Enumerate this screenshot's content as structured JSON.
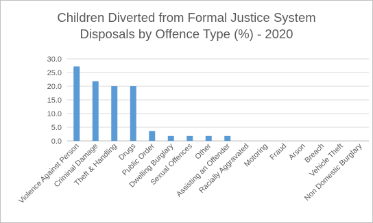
{
  "chart_data": {
    "type": "bar",
    "title_line1": "Children Diverted from Formal Justice System",
    "title_line2": "Disposals by Offence Type (%) - 2020",
    "categories": [
      "Violence Against Person",
      "Criminal Damage",
      "Theft & Handling",
      "Drugs",
      "Public Order",
      "Dwelling Burglary",
      "Sexual Offences",
      "Other",
      "Assisting an Offender",
      "Racially Aggravated",
      "Motoring",
      "Fraud",
      "Arson",
      "Breach",
      "Vehicle Theft",
      "Non Domestic Burglary"
    ],
    "values": [
      27.2,
      21.8,
      20.0,
      20.0,
      3.6,
      1.8,
      1.8,
      1.8,
      1.8,
      0,
      0,
      0,
      0,
      0,
      0,
      0
    ],
    "yticks": [
      "0.0",
      "5.0",
      "10.0",
      "15.0",
      "20.0",
      "25.0",
      "30.0"
    ],
    "ylim": [
      0,
      30
    ],
    "bar_color": "#5b9bd5",
    "grid": true,
    "legend": "none"
  }
}
